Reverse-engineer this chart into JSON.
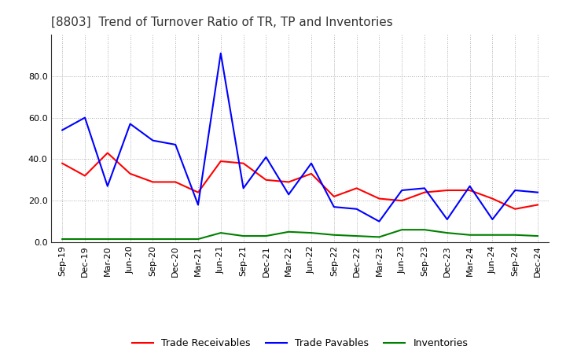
{
  "title": "[8803]  Trend of Turnover Ratio of TR, TP and Inventories",
  "x_labels": [
    "Sep-19",
    "Dec-19",
    "Mar-20",
    "Jun-20",
    "Sep-20",
    "Dec-20",
    "Mar-21",
    "Jun-21",
    "Sep-21",
    "Dec-21",
    "Mar-22",
    "Jun-22",
    "Sep-22",
    "Dec-22",
    "Mar-23",
    "Jun-23",
    "Sep-23",
    "Dec-23",
    "Mar-24",
    "Jun-24",
    "Sep-24",
    "Dec-24"
  ],
  "trade_receivables": [
    38.0,
    32.0,
    43.0,
    33.0,
    29.0,
    29.0,
    24.0,
    39.0,
    38.0,
    30.0,
    29.0,
    33.0,
    22.0,
    26.0,
    21.0,
    20.0,
    24.0,
    25.0,
    25.0,
    21.0,
    16.0,
    18.0
  ],
  "trade_payables": [
    54.0,
    60.0,
    27.0,
    57.0,
    49.0,
    47.0,
    18.0,
    91.0,
    26.0,
    41.0,
    23.0,
    38.0,
    17.0,
    16.0,
    10.0,
    25.0,
    26.0,
    11.0,
    27.0,
    11.0,
    25.0,
    24.0
  ],
  "inventories": [
    1.5,
    1.5,
    1.5,
    1.5,
    1.5,
    1.5,
    1.5,
    4.5,
    3.0,
    3.0,
    5.0,
    4.5,
    3.5,
    3.0,
    2.5,
    6.0,
    6.0,
    4.5,
    3.5,
    3.5,
    3.5,
    3.0
  ],
  "ylim": [
    0.0,
    100.0
  ],
  "yticks": [
    0.0,
    20.0,
    40.0,
    60.0,
    80.0
  ],
  "color_tr": "#FF0000",
  "color_tp": "#0000FF",
  "color_inv": "#008000",
  "legend_tr": "Trade Receivables",
  "legend_tp": "Trade Payables",
  "legend_inv": "Inventories",
  "bg_color": "#FFFFFF",
  "grid_color": "#999999",
  "title_fontsize": 11,
  "tick_fontsize": 8,
  "legend_fontsize": 9,
  "linewidth": 1.5
}
